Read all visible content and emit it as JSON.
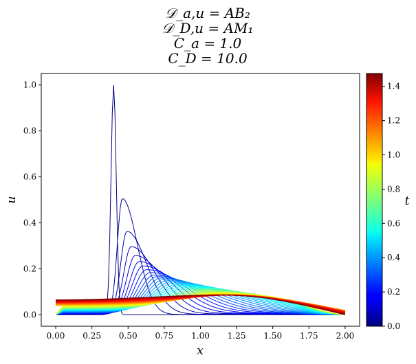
{
  "chart_data": {
    "type": "line",
    "title_lines": [
      "𝒟_a,u = AB₂",
      "𝒟_D,u = AM₁",
      "C_a = 1.0",
      "C_D = 10.0"
    ],
    "xlabel": "x",
    "ylabel": "u",
    "colorbar_label": "t",
    "xlim": [
      -0.1,
      2.1
    ],
    "ylim": [
      -0.05,
      1.05
    ],
    "xticks": [
      "0.00",
      "0.25",
      "0.50",
      "0.75",
      "1.00",
      "1.25",
      "1.50",
      "1.75",
      "2.00"
    ],
    "yticks": [
      "0.0",
      "0.2",
      "0.4",
      "0.6",
      "0.8",
      "1.0"
    ],
    "colorbar_range": [
      0.0,
      1.475
    ],
    "colorbar_ticks": [
      "0.0",
      "0.2",
      "0.4",
      "0.6",
      "0.8",
      "1.0",
      "1.2",
      "1.4"
    ],
    "colormap": "jet",
    "domain": [
      0.0,
      2.0
    ],
    "initial_pulse": {
      "center": 0.4,
      "peak": 1.0,
      "support": [
        0.3,
        0.5
      ]
    },
    "final_profile": {
      "left_value": 0.065,
      "max_value": 0.095,
      "max_x": 1.45,
      "right_value": 0.0
    },
    "peak_heights": [
      1.0,
      0.51,
      0.37,
      0.305,
      0.268,
      0.243,
      0.225,
      0.21,
      0.198,
      0.188
    ],
    "series": [
      {
        "t": 0.0,
        "peak": 1.0
      },
      {
        "t": 0.02,
        "peak": 0.51
      },
      {
        "t": 0.05,
        "peak": 0.37
      },
      {
        "t": 0.08,
        "peak": 0.305
      },
      {
        "t": 0.11,
        "peak": 0.268
      },
      {
        "t": 0.15,
        "peak": 0.243
      },
      {
        "t": 0.2,
        "peak": 0.225
      },
      {
        "t": 0.25,
        "peak": 0.21
      },
      {
        "t": 0.3,
        "peak": 0.198
      },
      {
        "t": 0.35,
        "peak": 0.188
      },
      {
        "t": 1.475,
        "peak": 0.095
      }
    ],
    "grid": false
  }
}
